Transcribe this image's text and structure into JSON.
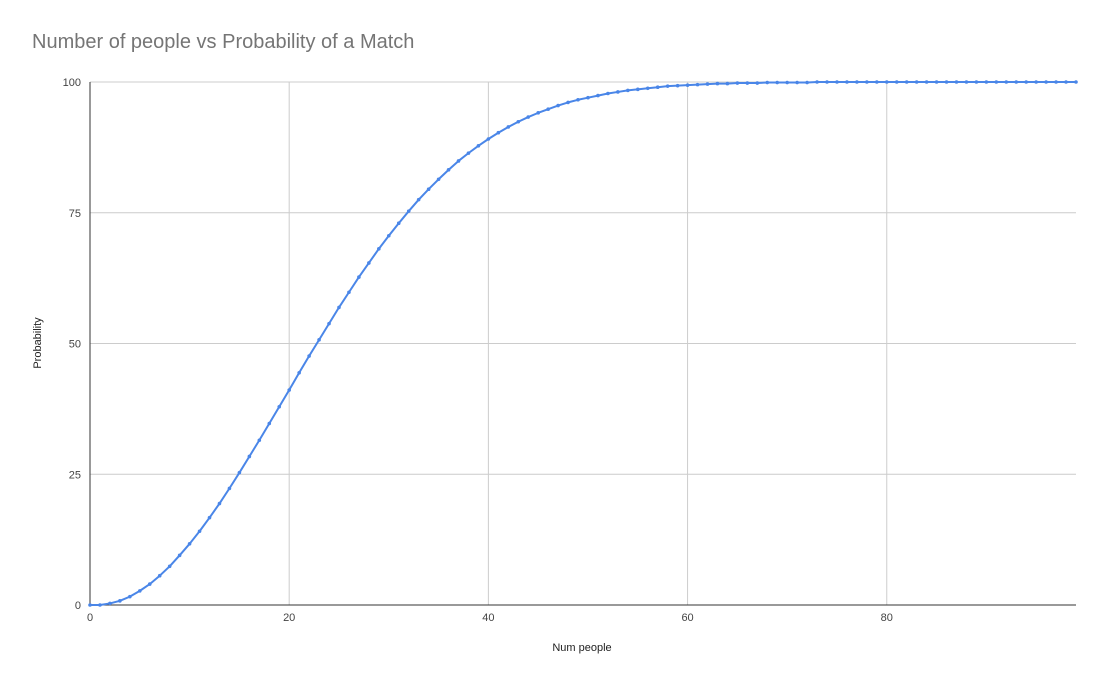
{
  "chart_data": {
    "type": "line",
    "title": "Number of people vs Probability of a Match",
    "xlabel": "Num people",
    "ylabel": "Probability",
    "xlim": [
      0,
      99
    ],
    "ylim": [
      0,
      100
    ],
    "x_ticks": [
      0,
      20,
      40,
      60,
      80
    ],
    "y_ticks": [
      0,
      25,
      50,
      75,
      100
    ],
    "grid": true,
    "legend": "none",
    "series": [
      {
        "color": "#4a86e8",
        "x": [
          0,
          1,
          2,
          3,
          4,
          5,
          6,
          7,
          8,
          9,
          10,
          11,
          12,
          13,
          14,
          15,
          16,
          17,
          18,
          19,
          20,
          21,
          22,
          23,
          24,
          25,
          26,
          27,
          28,
          29,
          30,
          31,
          32,
          33,
          34,
          35,
          36,
          37,
          38,
          39,
          40,
          41,
          42,
          43,
          44,
          45,
          46,
          47,
          48,
          49,
          50,
          51,
          52,
          53,
          54,
          55,
          56,
          57,
          58,
          59,
          60,
          61,
          62,
          63,
          64,
          65,
          66,
          67,
          68,
          69,
          70,
          71,
          72,
          73,
          74,
          75,
          76,
          77,
          78,
          79,
          80,
          81,
          82,
          83,
          84,
          85,
          86,
          87,
          88,
          89,
          90,
          91,
          92,
          93,
          94,
          95,
          96,
          97,
          98,
          99
        ],
        "values": [
          0,
          0,
          0.3,
          0.8,
          1.6,
          2.7,
          4.0,
          5.6,
          7.4,
          9.5,
          11.7,
          14.1,
          16.7,
          19.4,
          22.3,
          25.3,
          28.4,
          31.5,
          34.7,
          37.9,
          41.1,
          44.4,
          47.6,
          50.7,
          53.8,
          56.9,
          59.8,
          62.7,
          65.4,
          68.1,
          70.6,
          73.0,
          75.3,
          77.5,
          79.5,
          81.4,
          83.2,
          84.9,
          86.4,
          87.8,
          89.1,
          90.3,
          91.4,
          92.4,
          93.3,
          94.1,
          94.8,
          95.5,
          96.1,
          96.6,
          97.0,
          97.4,
          97.8,
          98.1,
          98.4,
          98.6,
          98.8,
          99.0,
          99.2,
          99.3,
          99.4,
          99.5,
          99.6,
          99.7,
          99.7,
          99.8,
          99.8,
          99.8,
          99.9,
          99.9,
          99.9,
          99.9,
          99.9,
          100,
          100,
          100,
          100,
          100,
          100,
          100,
          100,
          100,
          100,
          100,
          100,
          100,
          100,
          100,
          100,
          100,
          100,
          100,
          100,
          100,
          100,
          100,
          100,
          100,
          100,
          100
        ]
      }
    ]
  }
}
